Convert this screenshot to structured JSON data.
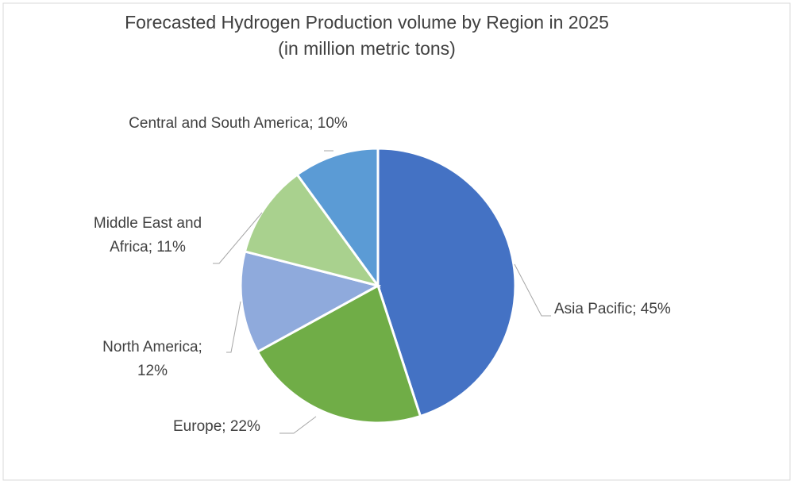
{
  "chart_data": {
    "type": "pie",
    "title": "Forecasted Hydrogen Production volume by Region in 2025",
    "subtitle": "(in million metric tons)",
    "categories": [
      "Asia Pacific",
      "Europe",
      "North America",
      "Middle East and Africa",
      "Central and South America"
    ],
    "values": [
      45,
      22,
      12,
      11,
      10
    ],
    "value_labels": [
      "Asia Pacific; 45%",
      "Europe; 22%",
      "North America;\n12%",
      "Middle East and\nAfrica; 11%",
      "Central and South America; 10%"
    ],
    "colors": [
      "#4472c4",
      "#70ad47",
      "#8faadc",
      "#a9d18e",
      "#5b9bd5"
    ]
  }
}
